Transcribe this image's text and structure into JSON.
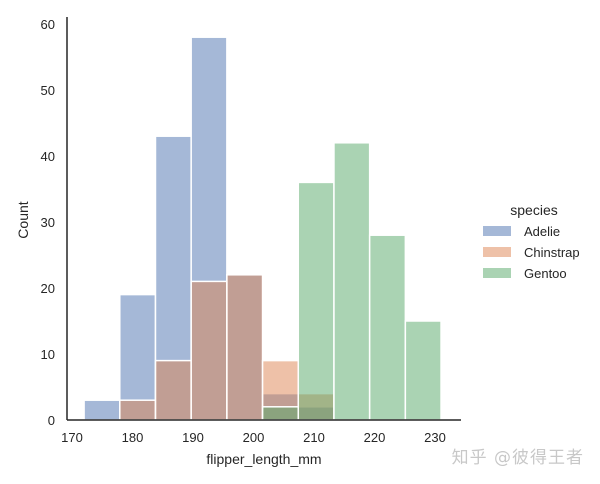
{
  "chart_data": {
    "type": "bar",
    "subtype": "histogram-layered",
    "title": "",
    "xlabel": "flipper_length_mm",
    "ylabel": "Count",
    "xlim": [
      170,
      233
    ],
    "ylim": [
      0,
      61
    ],
    "xticks": [
      170,
      180,
      190,
      200,
      210,
      220,
      230
    ],
    "yticks": [
      0,
      10,
      20,
      30,
      40,
      50,
      60
    ],
    "grid": false,
    "legend": {
      "title": "species",
      "position": "right-outside"
    },
    "bin_edges": [
      172.0,
      177.9,
      183.8,
      189.7,
      195.6,
      201.5,
      207.4,
      213.3,
      219.2,
      225.1,
      231.0
    ],
    "series": [
      {
        "name": "Adelie",
        "color": "#4c72b0",
        "values": [
          3,
          19,
          43,
          58,
          22,
          4,
          2,
          0,
          0,
          0
        ]
      },
      {
        "name": "Chinstrap",
        "color": "#dd8452",
        "values": [
          0,
          3,
          9,
          21,
          22,
          9,
          4,
          0,
          0,
          0
        ]
      },
      {
        "name": "Gentoo",
        "color": "#55a868",
        "values": [
          0,
          0,
          0,
          0,
          0,
          2,
          36,
          42,
          28,
          15
        ]
      }
    ]
  },
  "watermark": "知乎 @彼得王者"
}
